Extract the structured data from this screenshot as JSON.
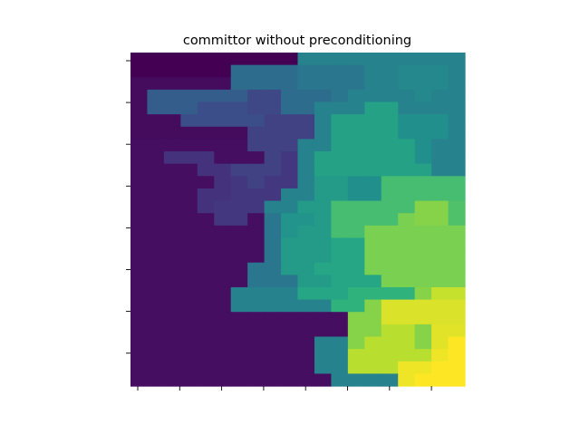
{
  "chart_data": {
    "type": "heatmap",
    "title": "committor without preconditioning",
    "xlabel": "",
    "ylabel": "",
    "colormap": "viridis",
    "value_range": [
      0,
      1
    ],
    "n_x_ticks": 8,
    "n_y_ticks": 8,
    "tick_labels_shown": false,
    "grid": [
      [
        0.0,
        0.0,
        0.0,
        0.0,
        0.0,
        0.0,
        0.0,
        0.0,
        0.0,
        0.0,
        0.45,
        0.45,
        0.45,
        0.45,
        0.45,
        0.45,
        0.45,
        0.45,
        0.45,
        0.45
      ],
      [
        0.0,
        0.0,
        0.0,
        0.0,
        0.0,
        0.0,
        0.36,
        0.36,
        0.36,
        0.36,
        0.4,
        0.4,
        0.4,
        0.4,
        0.45,
        0.45,
        0.47,
        0.47,
        0.47,
        0.45
      ],
      [
        0.03,
        0.03,
        0.03,
        0.03,
        0.03,
        0.03,
        0.36,
        0.36,
        0.36,
        0.36,
        0.4,
        0.4,
        0.4,
        0.4,
        0.45,
        0.45,
        0.47,
        0.47,
        0.47,
        0.45
      ],
      [
        0.03,
        0.3,
        0.3,
        0.3,
        0.3,
        0.3,
        0.3,
        0.22,
        0.22,
        0.36,
        0.36,
        0.36,
        0.4,
        0.45,
        0.45,
        0.45,
        0.45,
        0.47,
        0.45,
        0.45
      ],
      [
        0.03,
        0.3,
        0.3,
        0.3,
        0.24,
        0.24,
        0.24,
        0.22,
        0.22,
        0.36,
        0.36,
        0.45,
        0.45,
        0.45,
        0.58,
        0.58,
        0.45,
        0.45,
        0.45,
        0.45
      ],
      [
        0.03,
        0.03,
        0.03,
        0.24,
        0.24,
        0.24,
        0.24,
        0.24,
        0.2,
        0.2,
        0.2,
        0.45,
        0.58,
        0.58,
        0.58,
        0.58,
        0.5,
        0.5,
        0.5,
        0.45
      ],
      [
        0.03,
        0.03,
        0.03,
        0.03,
        0.03,
        0.03,
        0.03,
        0.2,
        0.2,
        0.2,
        0.2,
        0.45,
        0.58,
        0.58,
        0.58,
        0.58,
        0.5,
        0.5,
        0.5,
        0.45
      ],
      [
        0.04,
        0.04,
        0.04,
        0.04,
        0.04,
        0.04,
        0.04,
        0.2,
        0.2,
        0.2,
        0.45,
        0.45,
        0.58,
        0.58,
        0.58,
        0.58,
        0.58,
        0.5,
        0.45,
        0.45
      ],
      [
        0.04,
        0.04,
        0.15,
        0.15,
        0.15,
        0.04,
        0.04,
        0.04,
        0.2,
        0.17,
        0.45,
        0.58,
        0.58,
        0.58,
        0.58,
        0.58,
        0.58,
        0.5,
        0.45,
        0.45
      ],
      [
        0.04,
        0.04,
        0.04,
        0.04,
        0.15,
        0.15,
        0.2,
        0.2,
        0.2,
        0.17,
        0.45,
        0.58,
        0.58,
        0.58,
        0.58,
        0.58,
        0.58,
        0.58,
        0.45,
        0.45
      ],
      [
        0.04,
        0.04,
        0.04,
        0.04,
        0.04,
        0.15,
        0.17,
        0.2,
        0.17,
        0.17,
        0.45,
        0.55,
        0.55,
        0.5,
        0.5,
        0.7,
        0.7,
        0.7,
        0.7,
        0.7
      ],
      [
        0.04,
        0.04,
        0.04,
        0.04,
        0.15,
        0.15,
        0.17,
        0.17,
        0.17,
        0.45,
        0.45,
        0.55,
        0.55,
        0.5,
        0.5,
        0.7,
        0.7,
        0.7,
        0.7,
        0.7
      ],
      [
        0.04,
        0.04,
        0.04,
        0.04,
        0.15,
        0.17,
        0.17,
        0.17,
        0.45,
        0.45,
        0.55,
        0.55,
        0.7,
        0.7,
        0.7,
        0.7,
        0.7,
        0.82,
        0.82,
        0.72
      ],
      [
        0.04,
        0.04,
        0.04,
        0.04,
        0.04,
        0.17,
        0.17,
        0.04,
        0.4,
        0.52,
        0.52,
        0.55,
        0.7,
        0.7,
        0.7,
        0.7,
        0.8,
        0.82,
        0.82,
        0.72
      ],
      [
        0.04,
        0.04,
        0.04,
        0.04,
        0.04,
        0.04,
        0.04,
        0.04,
        0.4,
        0.52,
        0.55,
        0.55,
        0.7,
        0.7,
        0.8,
        0.8,
        0.8,
        0.8,
        0.8,
        0.8
      ],
      [
        0.04,
        0.04,
        0.04,
        0.04,
        0.04,
        0.04,
        0.04,
        0.04,
        0.4,
        0.55,
        0.55,
        0.55,
        0.6,
        0.6,
        0.8,
        0.8,
        0.8,
        0.8,
        0.8,
        0.8
      ],
      [
        0.04,
        0.04,
        0.04,
        0.04,
        0.04,
        0.04,
        0.04,
        0.04,
        0.4,
        0.55,
        0.55,
        0.55,
        0.6,
        0.6,
        0.8,
        0.8,
        0.8,
        0.8,
        0.8,
        0.8
      ],
      [
        0.04,
        0.04,
        0.04,
        0.04,
        0.04,
        0.04,
        0.04,
        0.4,
        0.4,
        0.55,
        0.55,
        0.6,
        0.6,
        0.6,
        0.8,
        0.8,
        0.8,
        0.8,
        0.8,
        0.8
      ],
      [
        0.04,
        0.04,
        0.04,
        0.04,
        0.04,
        0.04,
        0.04,
        0.4,
        0.4,
        0.4,
        0.55,
        0.55,
        0.6,
        0.6,
        0.6,
        0.8,
        0.8,
        0.8,
        0.8,
        0.8
      ],
      [
        0.04,
        0.04,
        0.04,
        0.04,
        0.04,
        0.04,
        0.45,
        0.45,
        0.45,
        0.45,
        0.6,
        0.6,
        0.6,
        0.65,
        0.65,
        0.65,
        0.65,
        0.82,
        0.92,
        0.92
      ],
      [
        0.04,
        0.04,
        0.04,
        0.04,
        0.04,
        0.04,
        0.45,
        0.45,
        0.45,
        0.45,
        0.45,
        0.45,
        0.65,
        0.65,
        0.82,
        0.95,
        0.95,
        0.95,
        0.95,
        0.95
      ],
      [
        0.04,
        0.04,
        0.04,
        0.04,
        0.04,
        0.04,
        0.04,
        0.04,
        0.04,
        0.04,
        0.04,
        0.04,
        0.04,
        0.82,
        0.82,
        0.95,
        0.95,
        0.95,
        0.95,
        0.95
      ],
      [
        0.04,
        0.04,
        0.04,
        0.04,
        0.04,
        0.04,
        0.04,
        0.04,
        0.04,
        0.04,
        0.04,
        0.04,
        0.04,
        0.82,
        0.82,
        0.9,
        0.9,
        0.82,
        0.96,
        0.96
      ],
      [
        0.04,
        0.04,
        0.04,
        0.04,
        0.04,
        0.04,
        0.04,
        0.04,
        0.04,
        0.04,
        0.04,
        0.45,
        0.45,
        0.82,
        0.9,
        0.9,
        0.9,
        0.82,
        0.96,
        1.0
      ],
      [
        0.04,
        0.04,
        0.04,
        0.04,
        0.04,
        0.04,
        0.04,
        0.04,
        0.04,
        0.04,
        0.04,
        0.45,
        0.45,
        0.9,
        0.9,
        0.9,
        0.9,
        0.9,
        0.98,
        1.0
      ],
      [
        0.04,
        0.04,
        0.04,
        0.04,
        0.04,
        0.04,
        0.04,
        0.04,
        0.04,
        0.04,
        0.04,
        0.45,
        0.45,
        0.9,
        0.9,
        0.9,
        0.98,
        0.98,
        1.0,
        1.0
      ],
      [
        0.04,
        0.04,
        0.04,
        0.04,
        0.04,
        0.04,
        0.04,
        0.04,
        0.04,
        0.04,
        0.04,
        0.04,
        0.45,
        0.45,
        0.45,
        0.45,
        0.98,
        1.0,
        1.0,
        1.0
      ]
    ]
  }
}
